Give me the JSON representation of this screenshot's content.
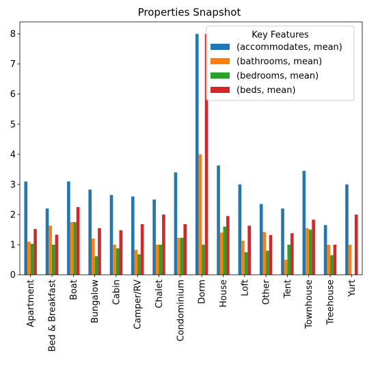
{
  "chart_data": {
    "type": "bar",
    "title": "Properties Snapshot",
    "xlabel": "",
    "ylabel": "",
    "ylim": [
      0,
      8.4
    ],
    "yticks": [
      0,
      1,
      2,
      3,
      4,
      5,
      6,
      7,
      8
    ],
    "grid": false,
    "legend_position": "top-right",
    "legend_title": "Key Features",
    "categories": [
      "Apartment",
      "Bed & Breakfast",
      "Boat",
      "Bungalow",
      "Cabin",
      "Camper/RV",
      "Chalet",
      "Condominium",
      "Dorm",
      "House",
      "Loft",
      "Other",
      "Tent",
      "Townhouse",
      "Treehouse",
      "Yurt"
    ],
    "series": [
      {
        "name": "(accommodates, mean)",
        "color": "#1f77b4",
        "values": [
          3.1,
          2.2,
          3.1,
          2.83,
          2.65,
          2.6,
          2.5,
          3.4,
          8.0,
          3.63,
          3.0,
          2.35,
          2.2,
          3.45,
          1.65,
          3.0
        ]
      },
      {
        "name": "(bathrooms, mean)",
        "color": "#ff7f0e",
        "values": [
          1.1,
          1.63,
          1.75,
          1.2,
          1.0,
          0.83,
          1.0,
          1.23,
          4.0,
          1.4,
          1.13,
          1.42,
          0.5,
          1.55,
          1.0,
          1.0
        ]
      },
      {
        "name": "(bedrooms, mean)",
        "color": "#2ca02c",
        "values": [
          1.03,
          1.0,
          1.75,
          0.62,
          0.88,
          0.68,
          1.0,
          1.23,
          1.0,
          1.6,
          0.75,
          0.8,
          1.0,
          1.5,
          0.65,
          0.0
        ]
      },
      {
        "name": "(beds, mean)",
        "color": "#d62728",
        "values": [
          1.52,
          1.33,
          2.25,
          1.55,
          1.48,
          1.68,
          2.0,
          1.68,
          8.0,
          1.95,
          1.63,
          1.32,
          1.38,
          1.83,
          1.0,
          2.0
        ]
      }
    ]
  }
}
